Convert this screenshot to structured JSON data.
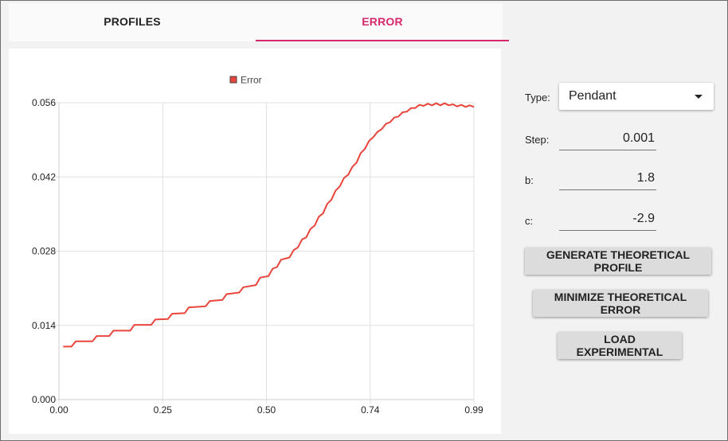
{
  "tabs": {
    "profiles": "PROFILES",
    "error": "ERROR",
    "active": "error"
  },
  "chart_data": {
    "type": "line",
    "legend": "Error",
    "legend_position": "top-center",
    "color": "#e8453c",
    "grid": true,
    "xlim": [
      0,
      0.99
    ],
    "ylim": [
      0,
      0.056
    ],
    "x_ticks": [
      "0.00",
      "0.25",
      "0.50",
      "0.74",
      "0.99"
    ],
    "x_tick_values": [
      0,
      0.2475,
      0.495,
      0.7425,
      0.99
    ],
    "y_ticks": [
      "0.000",
      "0.014",
      "0.028",
      "0.042",
      "0.056"
    ],
    "y_tick_values": [
      0,
      0.014,
      0.028,
      0.042,
      0.056
    ],
    "x": [
      0.01,
      0.03,
      0.04,
      0.08,
      0.09,
      0.12,
      0.13,
      0.17,
      0.18,
      0.22,
      0.23,
      0.26,
      0.27,
      0.3,
      0.31,
      0.35,
      0.36,
      0.39,
      0.4,
      0.43,
      0.44,
      0.47,
      0.48,
      0.5,
      0.51,
      0.52,
      0.53,
      0.55,
      0.56,
      0.57,
      0.58,
      0.59,
      0.6,
      0.61,
      0.62,
      0.63,
      0.64,
      0.65,
      0.66,
      0.67,
      0.68,
      0.69,
      0.7,
      0.71,
      0.72,
      0.73,
      0.74,
      0.75,
      0.76,
      0.77,
      0.78,
      0.79,
      0.8,
      0.81,
      0.82,
      0.83,
      0.84,
      0.85,
      0.86,
      0.87,
      0.88,
      0.89,
      0.9,
      0.91,
      0.92,
      0.93,
      0.94,
      0.95,
      0.96,
      0.97,
      0.98,
      0.99
    ],
    "values": [
      0.01,
      0.01,
      0.011,
      0.011,
      0.012,
      0.012,
      0.013,
      0.013,
      0.0141,
      0.0141,
      0.0151,
      0.0152,
      0.0162,
      0.0163,
      0.0174,
      0.0176,
      0.0186,
      0.0188,
      0.0199,
      0.0202,
      0.0212,
      0.0216,
      0.023,
      0.0233,
      0.0247,
      0.025,
      0.0264,
      0.0268,
      0.0282,
      0.0287,
      0.0302,
      0.0306,
      0.0322,
      0.0328,
      0.0345,
      0.0351,
      0.0369,
      0.0377,
      0.0394,
      0.0402,
      0.0418,
      0.0424,
      0.0439,
      0.0447,
      0.0465,
      0.0473,
      0.0488,
      0.0495,
      0.0505,
      0.051,
      0.052,
      0.0523,
      0.0532,
      0.0534,
      0.0542,
      0.0543,
      0.055,
      0.055,
      0.0556,
      0.0554,
      0.0558,
      0.0555,
      0.0559,
      0.0555,
      0.0559,
      0.0555,
      0.0557,
      0.0553,
      0.0556,
      0.0552,
      0.0555,
      0.0552
    ]
  },
  "controls": {
    "type_label": "Type:",
    "type_value": "Pendant",
    "step_label": "Step:",
    "step_value": "0.001",
    "b_label": "b:",
    "b_value": "1.8",
    "c_label": "c:",
    "c_value": "-2.9"
  },
  "buttons": {
    "generate": "GENERATE THEORETICAL PROFILE",
    "minimize": "MINIMIZE THEORETICAL ERROR",
    "load": "LOAD EXPERIMENTAL"
  }
}
